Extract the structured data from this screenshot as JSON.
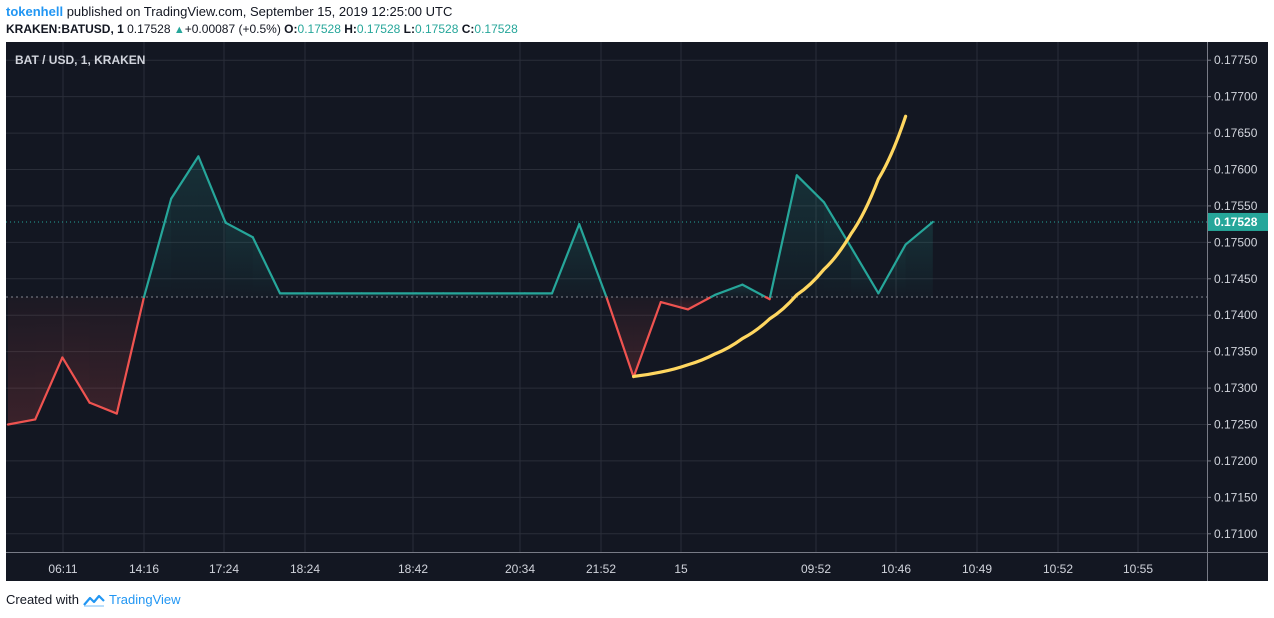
{
  "header": {
    "username": "tokenhell",
    "published_text": " published on TradingView.com, September 15, 2019 12:25:00 UTC"
  },
  "quote": {
    "symbol": "KRAKEN:BATUSD, 1",
    "last": "0.17528",
    "change": "+0.00087 (+0.5%)",
    "o_label": "O:",
    "o": "0.17528",
    "h_label": "H:",
    "h": "0.17528",
    "l_label": "L:",
    "l": "0.17528",
    "c_label": "C:",
    "c": "0.17528"
  },
  "footer": {
    "created_with": "Created with",
    "brand": "TradingView"
  },
  "colors": {
    "background": "#131722",
    "grid": "#2a2e39",
    "up_line": "#26a69a",
    "down_line": "#ef5350",
    "curve": "#ffd760",
    "price_tag": "#26a69a",
    "brand": "#2196f3"
  },
  "chart_data": {
    "type": "line",
    "title": "BAT / USD, 1, KRAKEN",
    "x_tick_labels": [
      "06:11",
      "14:16",
      "17:24",
      "18:24",
      "18:42",
      "20:34",
      "21:52",
      "15",
      "09:52",
      "10:46",
      "10:49",
      "10:52",
      "10:55"
    ],
    "ylim": [
      0.17075,
      0.17775
    ],
    "y_ticks": [
      0.171,
      0.1715,
      0.172,
      0.1725,
      0.173,
      0.1735,
      0.174,
      0.1745,
      0.175,
      0.1755,
      0.176,
      0.1765,
      0.177,
      0.1775
    ],
    "baseline": 0.17425,
    "last_price": 0.17528,
    "last_price_label": "0.17528",
    "series": [
      {
        "values": [
          0.1725,
          0.17257,
          0.17342,
          0.1728,
          0.17265,
          0.17425,
          0.1756,
          0.17618,
          0.17527,
          0.17507,
          0.1743,
          0.1743,
          0.1743,
          0.1743,
          0.1743,
          0.1743,
          0.1743,
          0.1743,
          0.1743,
          0.1743,
          0.1743,
          0.17525,
          0.17425,
          0.17315,
          0.17418,
          0.17408,
          0.17428,
          0.17442,
          0.17422,
          0.17592,
          0.17555,
          0.17493,
          0.1743,
          0.17497,
          0.17528
        ]
      }
    ],
    "annotation_curve": [
      [
        23,
        0.17316
      ],
      [
        24,
        0.17322
      ],
      [
        25,
        0.17332
      ],
      [
        26,
        0.17347
      ],
      [
        27,
        0.17368
      ],
      [
        28,
        0.17395
      ],
      [
        29,
        0.17428
      ],
      [
        30,
        0.17463
      ],
      [
        31,
        0.17512
      ],
      [
        32,
        0.17587
      ],
      [
        33,
        0.17673
      ]
    ],
    "grid": true
  }
}
